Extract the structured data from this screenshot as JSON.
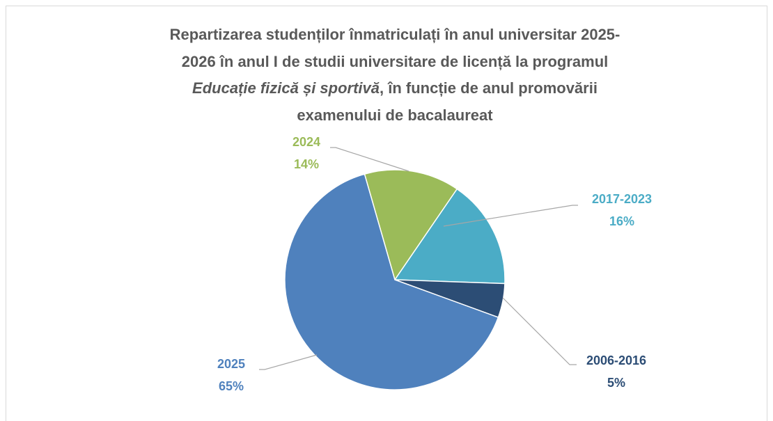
{
  "chart_data": {
    "type": "pie",
    "title": [
      "Repartizarea studenților înmatriculați în anul universitar 2025-",
      "2026 în anul I de studii universitare de licență la programul",
      "Educație fizică și sportivă",
      ", în funcție de anul promovării",
      "examenului de bacalaureat"
    ],
    "categories": [
      "2024",
      "2017-2023",
      "2006-2016",
      "2025"
    ],
    "values": [
      14,
      16,
      5,
      65
    ],
    "value_labels": [
      "14%",
      "16%",
      "5%",
      "65%"
    ],
    "colors": [
      "#9bbb59",
      "#4bacc6",
      "#2c4d75",
      "#4f81bd"
    ]
  }
}
